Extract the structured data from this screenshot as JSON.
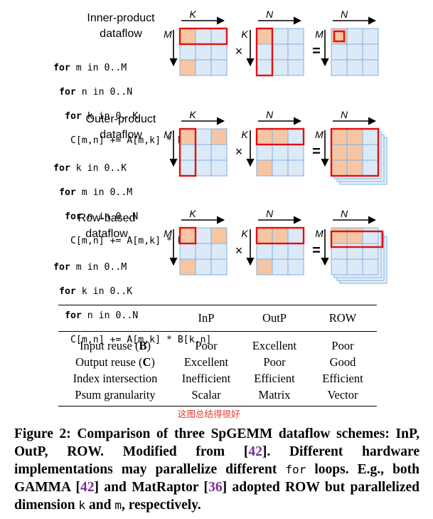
{
  "dataflows": [
    {
      "title_line1": "Inner-product",
      "title_line2": "dataflow",
      "code": [
        {
          "kw": "for",
          "rest": " m in 0..M"
        },
        {
          "kw": "for",
          "rest": " n in 0..N"
        },
        {
          "kw": "for",
          "rest": " k in 0..K"
        },
        {
          "kw": "",
          "rest": "C[m,n] += A[m,k] * B[k,n]"
        }
      ]
    },
    {
      "title_line1": "Outer-product",
      "title_line2": "dataflow",
      "code": [
        {
          "kw": "for",
          "rest": " k in 0..K"
        },
        {
          "kw": "for",
          "rest": " m in 0..M"
        },
        {
          "kw": "for",
          "rest": " n in 0..N"
        },
        {
          "kw": "",
          "rest": "C[m,n] += A[m,k] * B[k,n]"
        }
      ]
    },
    {
      "title_line1": "Row-based",
      "title_line2": "dataflow",
      "code": [
        {
          "kw": "for",
          "rest": " m in 0..M"
        },
        {
          "kw": "for",
          "rest": " k in 0..K"
        },
        {
          "kw": "for",
          "rest": " n in 0..N"
        },
        {
          "kw": "",
          "rest": "C[m,n] += A[m,k] * B[k,n]"
        }
      ]
    }
  ],
  "matrix_labels": {
    "K": "K",
    "M": "M",
    "N": "N",
    "times": "×",
    "equals": "="
  },
  "table": {
    "headers": [
      "",
      "InP",
      "OutP",
      "ROW"
    ],
    "rows": [
      {
        "label": "Input reuse (",
        "bold": "B",
        "tail": ")",
        "values": [
          "Poor",
          "Excellent",
          "Poor"
        ]
      },
      {
        "label": "Output reuse (",
        "bold": "C",
        "tail": ")",
        "values": [
          "Excellent",
          "Poor",
          "Good"
        ]
      },
      {
        "label": "Index intersection",
        "bold": "",
        "tail": "",
        "values": [
          "Inefficient",
          "Efficient",
          "Efficient"
        ]
      },
      {
        "label": "Psum granularity",
        "bold": "",
        "tail": "",
        "values": [
          "Scalar",
          "Matrix",
          "Vector"
        ]
      }
    ]
  },
  "annotation": "这图总结得很好",
  "caption": {
    "prefix": "Figure 2: Comparison of three SpGEMM dataflow schemes: InP, OutP, ROW. Modified from [",
    "ref1": "42",
    "mid1": "]. Different hardware implementations may parallelize different ",
    "code_for": "for",
    "mid2": " loops. E.g., both GAMMA [",
    "ref2": "42",
    "mid3": "] and MatRaptor [",
    "ref3": "36",
    "mid4": "] adopted ROW but parallelized dimension ",
    "code_k": "k",
    "mid5": " and ",
    "code_m": "m",
    "suffix": ", respectively."
  },
  "colors": {
    "cell_fill": "#dce9f7",
    "cell_border": "#7fb0e0",
    "nonzero_fill": "#f6c6a4",
    "highlight": "#e01010"
  }
}
